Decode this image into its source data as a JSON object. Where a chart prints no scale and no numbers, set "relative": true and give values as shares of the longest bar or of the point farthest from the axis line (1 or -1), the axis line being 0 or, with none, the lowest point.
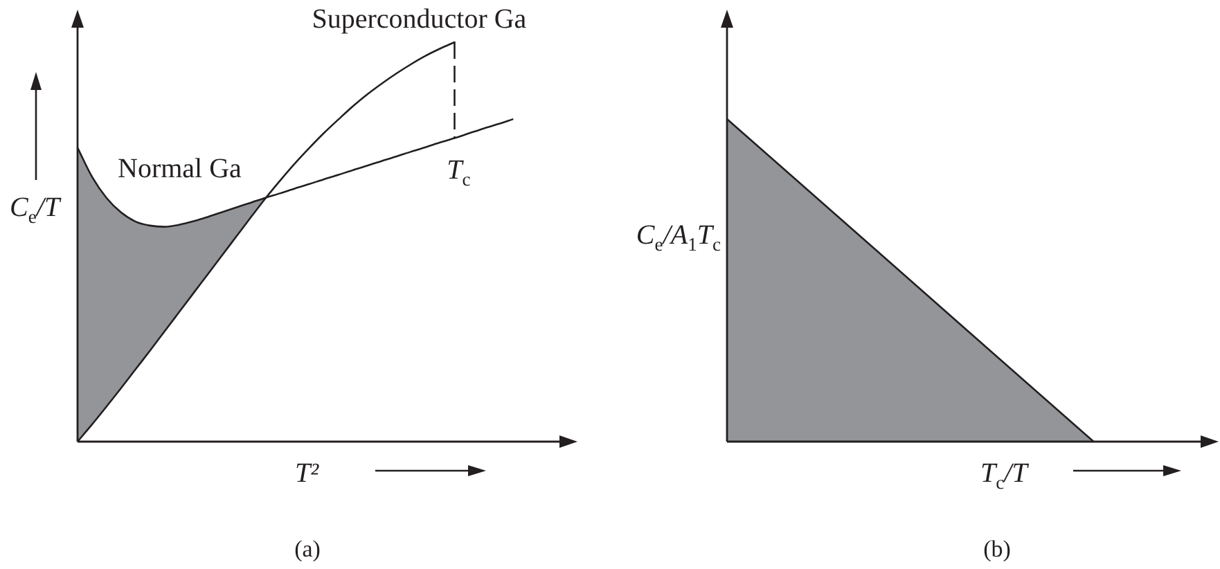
{
  "chart_data": [
    {
      "type": "line",
      "relative": true,
      "xlabel": "T²",
      "ylabel": "C$_{e}$/T",
      "categories": [
        null,
        null,
        null,
        null,
        null,
        null,
        null,
        null,
        null,
        null,
        null,
        null,
        null,
        null,
        null,
        null,
        null,
        null,
        null,
        null,
        null,
        null,
        null,
        null,
        null,
        null,
        null,
        null,
        null,
        null,
        null,
        null,
        null,
        null,
        null
      ],
      "series": [
        {
          "name": "Normal Ga",
          "color": "#231f20",
          "values": [
            0.736,
            0.663,
            0.61,
            0.574,
            0.551,
            0.541,
            0.538,
            0.543,
            0.552,
            0.563,
            0.575,
            0.587,
            0.599,
            0.611,
            0.622,
            0.634,
            0.645,
            0.657,
            0.668,
            0.68,
            0.691,
            0.703,
            0.714,
            0.726,
            0.737,
            0.749,
            0.76,
            0.772,
            0.784,
            0.795,
            0.807,
            null,
            null,
            null,
            null
          ],
          "upper": [
            0.736,
            0.663,
            0.61,
            0.574,
            0.551,
            0.541,
            0.538,
            0.543,
            0.552,
            0.563,
            0.575,
            0.587,
            0.599,
            0.611,
            null,
            null,
            null,
            null,
            null,
            null,
            null,
            null,
            null,
            null,
            null,
            null,
            null,
            null,
            null,
            null,
            null,
            null,
            null,
            null,
            null
          ],
          "lower": [
            0,
            0.043,
            0.088,
            0.134,
            0.181,
            0.228,
            0.276,
            0.324,
            0.372,
            0.42,
            0.468,
            0.516,
            0.564,
            0.611,
            null,
            null,
            null,
            null,
            null,
            null,
            null,
            null,
            null,
            null,
            null,
            null,
            null,
            null,
            null,
            null,
            null,
            null,
            null,
            null,
            null
          ]
        },
        {
          "name": "Superconductor Ga",
          "color": "#231f20",
          "values": [
            0,
            0.043,
            0.088,
            0.134,
            0.181,
            0.228,
            0.276,
            0.324,
            0.372,
            0.42,
            0.468,
            0.516,
            0.564,
            0.611,
            0.655,
            0.697,
            0.736,
            0.773,
            0.807,
            0.84,
            0.87,
            0.897,
            0.922,
            0.945,
            0.966,
            0.984,
            1,
            null,
            null,
            null,
            null,
            null,
            null,
            null,
            null
          ]
        }
      ],
      "ref_lines": [
        {
          "axis": "x",
          "label": "T$_{c}$",
          "line_style": "dashed"
        }
      ],
      "annotations": [
        "(a)"
      ]
    },
    {
      "type": "area",
      "relative": true,
      "xlabel": "T$_{c}$/T",
      "ylabel": "C$_{e}$/A$_{1}$T$_{c}$",
      "categories": [
        null,
        null,
        null,
        null,
        null
      ],
      "series": [
        {
          "color": "#939598",
          "values": [
            1,
            0.667,
            0.333,
            0,
            null
          ]
        }
      ],
      "annotations": [
        "(b)"
      ]
    }
  ]
}
